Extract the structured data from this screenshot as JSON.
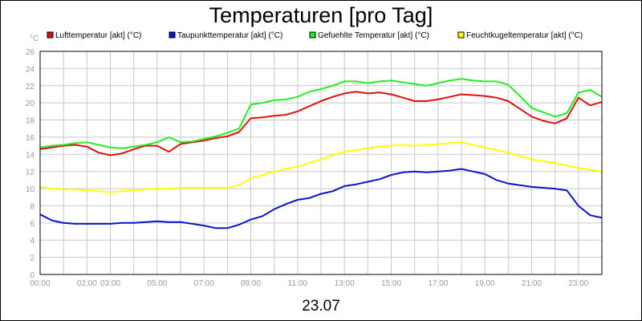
{
  "chart_data": {
    "type": "line",
    "title": "Temperaturen [pro Tag]",
    "xlabel": "23.07",
    "ylabel": "°C",
    "xlim": [
      0,
      24
    ],
    "ylim": [
      0,
      26
    ],
    "yticks": [
      0,
      2,
      4,
      6,
      8,
      10,
      12,
      14,
      16,
      18,
      20,
      22,
      24,
      26
    ],
    "xtick_values": [
      0,
      2,
      3,
      5,
      7,
      9,
      11,
      13,
      15,
      17,
      19,
      21,
      23
    ],
    "xtick_labels": [
      "00:00",
      "02:00",
      "03:00",
      "05:00",
      "07:00",
      "09:00",
      "11:00",
      "13:00",
      "15:00",
      "17:00",
      "19:00",
      "21:00",
      "23:00"
    ],
    "grid": true,
    "legend_position": "top",
    "series": [
      {
        "name": "Lufttemperatur [akt] (°C)",
        "color": "#e01010",
        "x": [
          0,
          0.5,
          1,
          1.5,
          2,
          2.5,
          3,
          3.5,
          4,
          4.5,
          5,
          5.5,
          6,
          6.5,
          7,
          7.5,
          8,
          8.5,
          9,
          9.5,
          10,
          10.5,
          11,
          11.5,
          12,
          12.5,
          13,
          13.5,
          14,
          14.5,
          15,
          15.5,
          16,
          16.5,
          17,
          17.5,
          18,
          18.5,
          19,
          19.5,
          20,
          20.5,
          21,
          21.5,
          22,
          22.5,
          23,
          23.5,
          24
        ],
        "y": [
          14.6,
          14.8,
          15.0,
          15.1,
          14.9,
          14.2,
          13.9,
          14.1,
          14.6,
          15.0,
          15.0,
          14.3,
          15.2,
          15.4,
          15.6,
          15.9,
          16.1,
          16.6,
          18.2,
          18.3,
          18.5,
          18.6,
          19.0,
          19.6,
          20.2,
          20.7,
          21.1,
          21.3,
          21.1,
          21.2,
          21.0,
          20.6,
          20.2,
          20.2,
          20.4,
          20.7,
          21.0,
          20.9,
          20.8,
          20.6,
          20.2,
          19.3,
          18.4,
          17.9,
          17.6,
          18.2,
          20.6,
          19.7,
          20.1
        ]
      },
      {
        "name": "Taupunkttemperatur [akt] (°C)",
        "color": "#0a14d0",
        "x": [
          0,
          0.5,
          1,
          1.5,
          2,
          2.5,
          3,
          3.5,
          4,
          4.5,
          5,
          5.5,
          6,
          6.5,
          7,
          7.5,
          8,
          8.5,
          9,
          9.5,
          10,
          10.5,
          11,
          11.5,
          12,
          12.5,
          13,
          13.5,
          14,
          14.5,
          15,
          15.5,
          16,
          16.5,
          17,
          17.5,
          18,
          18.5,
          19,
          19.5,
          20,
          20.5,
          21,
          21.5,
          22,
          22.5,
          23,
          23.5,
          24
        ],
        "y": [
          7.0,
          6.3,
          6.0,
          5.9,
          5.9,
          5.9,
          5.9,
          6.0,
          6.0,
          6.1,
          6.2,
          6.1,
          6.1,
          5.9,
          5.7,
          5.4,
          5.4,
          5.8,
          6.4,
          6.8,
          7.6,
          8.2,
          8.7,
          8.9,
          9.4,
          9.7,
          10.3,
          10.5,
          10.8,
          11.1,
          11.6,
          11.9,
          12.0,
          11.9,
          12.0,
          12.1,
          12.3,
          12.0,
          11.7,
          11.0,
          10.6,
          10.4,
          10.2,
          10.1,
          10.0,
          9.8,
          8.0,
          6.9,
          6.6
        ]
      },
      {
        "name": "Gefuehlte Temperatur [akt] (°C)",
        "color": "#22ee22",
        "x": [
          0,
          0.5,
          1,
          1.5,
          2,
          2.5,
          3,
          3.5,
          4,
          4.5,
          5,
          5.5,
          6,
          6.5,
          7,
          7.5,
          8,
          8.5,
          9,
          9.5,
          10,
          10.5,
          11,
          11.5,
          12,
          12.5,
          13,
          13.5,
          14,
          14.5,
          15,
          15.5,
          16,
          16.5,
          17,
          17.5,
          18,
          18.5,
          19,
          19.5,
          20,
          20.5,
          21,
          21.5,
          22,
          22.5,
          23,
          23.5,
          24
        ],
        "y": [
          14.8,
          15.0,
          15.1,
          15.3,
          15.4,
          15.1,
          14.8,
          14.7,
          14.9,
          15.1,
          15.4,
          16.0,
          15.4,
          15.5,
          15.8,
          16.1,
          16.5,
          17.0,
          19.8,
          20.0,
          20.3,
          20.4,
          20.7,
          21.3,
          21.6,
          22.0,
          22.5,
          22.5,
          22.3,
          22.5,
          22.6,
          22.4,
          22.2,
          22.0,
          22.3,
          22.6,
          22.8,
          22.6,
          22.5,
          22.5,
          22.1,
          20.8,
          19.4,
          18.9,
          18.4,
          18.8,
          21.2,
          21.5,
          20.7
        ]
      },
      {
        "name": "Feuchtkugeltemperatur [akt] (°C)",
        "color": "#ffff00",
        "x": [
          0,
          0.5,
          1,
          1.5,
          2,
          2.5,
          3,
          3.5,
          4,
          4.5,
          5,
          5.5,
          6,
          6.5,
          7,
          7.5,
          8,
          8.5,
          9,
          9.5,
          10,
          10.5,
          11,
          11.5,
          12,
          12.5,
          13,
          13.5,
          14,
          14.5,
          15,
          15.5,
          16,
          16.5,
          17,
          17.5,
          18,
          18.5,
          19,
          19.5,
          20,
          20.5,
          21,
          21.5,
          22,
          22.5,
          23,
          23.5,
          24
        ],
        "y": [
          10.2,
          10.0,
          9.9,
          9.9,
          9.8,
          9.7,
          9.6,
          9.7,
          9.8,
          9.9,
          10.0,
          10.0,
          10.1,
          10.1,
          10.1,
          10.1,
          10.1,
          10.4,
          11.2,
          11.6,
          12.0,
          12.3,
          12.6,
          13.0,
          13.4,
          13.9,
          14.3,
          14.5,
          14.7,
          14.9,
          15.0,
          15.1,
          15.0,
          15.1,
          15.2,
          15.3,
          15.4,
          15.1,
          14.8,
          14.5,
          14.2,
          13.8,
          13.4,
          13.2,
          13.0,
          12.7,
          12.4,
          12.2,
          12.0
        ]
      }
    ]
  }
}
